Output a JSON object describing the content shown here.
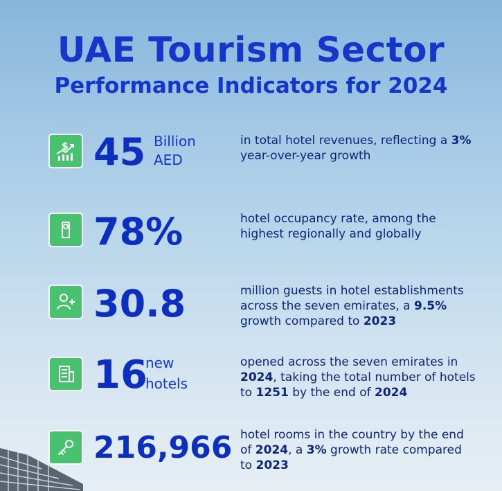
{
  "header": {
    "title": "UAE Tourism Sector",
    "subtitle": "Performance Indicators for 2024"
  },
  "indicators": [
    {
      "icon": "revenue-growth-icon",
      "value": "45",
      "unit_line1": "Billion",
      "unit_line2": "AED",
      "desc": [
        {
          "t": "in total hotel revenues, reflecting a "
        },
        {
          "t": "3%",
          "b": true
        },
        {
          "t": " year-over-year growth"
        }
      ]
    },
    {
      "icon": "door-hanger-icon",
      "value": "78%",
      "desc": [
        {
          "t": "hotel occupancy rate, among the highest regionally and globally"
        }
      ]
    },
    {
      "icon": "add-user-icon",
      "value": "30.8",
      "desc": [
        {
          "t": "million guests in hotel establishments across the seven emirates, a "
        },
        {
          "t": "9.5%",
          "b": true
        },
        {
          "t": " growth compared to "
        },
        {
          "t": "2023",
          "b": true
        }
      ]
    },
    {
      "icon": "hotel-building-icon",
      "value": "16",
      "unit_line1": "new",
      "unit_line2": "hotels",
      "desc": [
        {
          "t": "opened across the seven emirates in "
        },
        {
          "t": "2024",
          "b": true
        },
        {
          "t": ", taking the total number of hotels to "
        },
        {
          "t": "1251",
          "b": true
        },
        {
          "t": " by the end of "
        },
        {
          "t": "2024",
          "b": true
        }
      ]
    },
    {
      "icon": "key-icon",
      "value": "216,966",
      "desc": [
        {
          "t": "hotel rooms in the country by the end of "
        },
        {
          "t": "2024",
          "b": true
        },
        {
          "t": ", a "
        },
        {
          "t": "3%",
          "b": true
        },
        {
          "t": " growth rate compared to "
        },
        {
          "t": "2023",
          "b": true
        }
      ]
    }
  ]
}
